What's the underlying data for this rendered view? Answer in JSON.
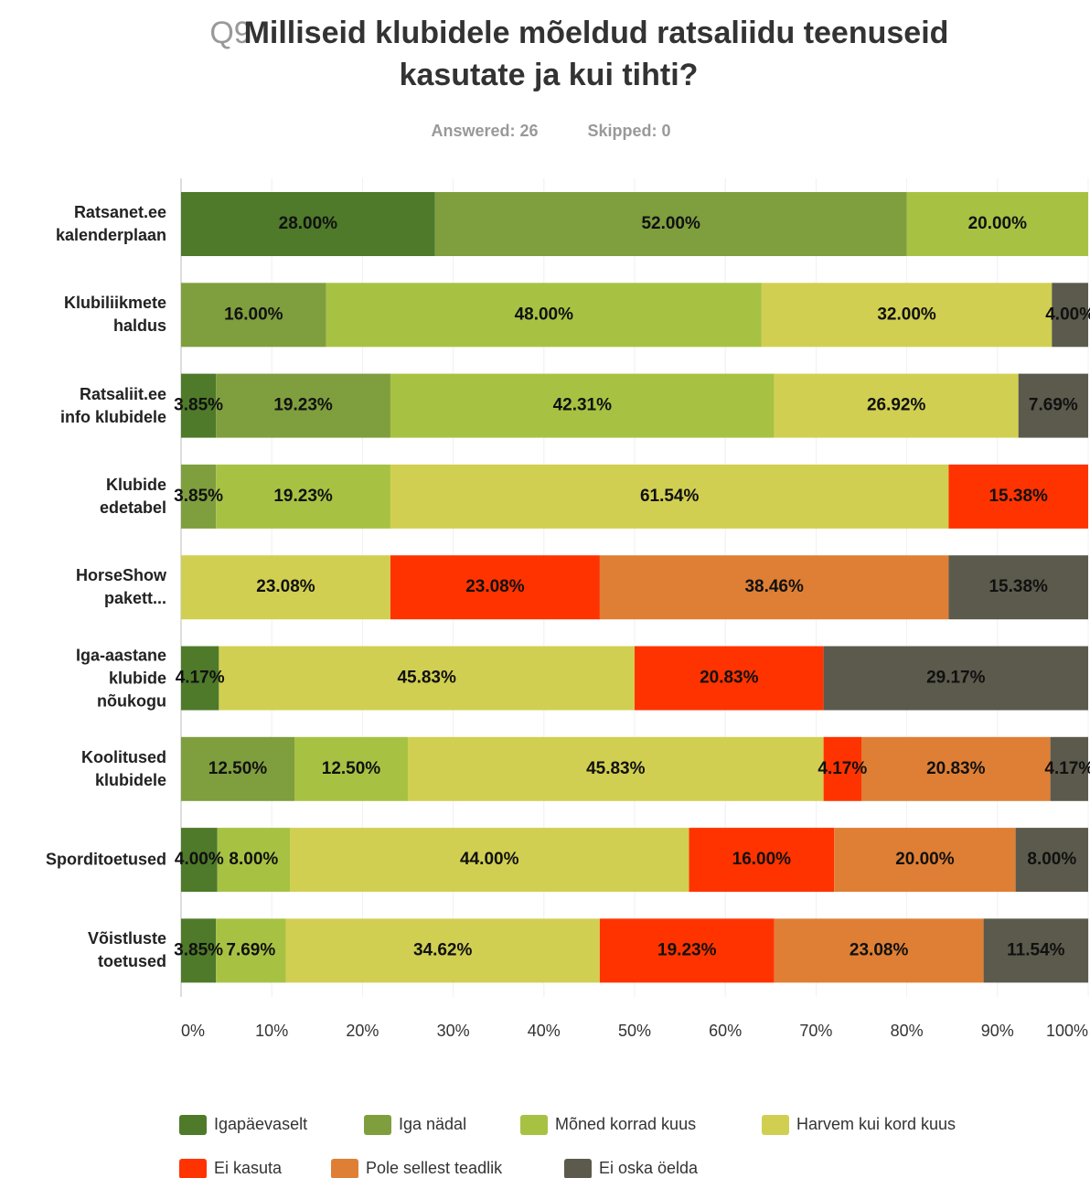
{
  "chart_data": {
    "type": "stacked_bar_horizontal",
    "question_number": "Q9",
    "title": "Milliseid klubidele mõeldud ratsaliidu teenuseid kasutate ja kui tihti?",
    "answered": "Answered: 26",
    "skipped": "Skipped: 0",
    "categories": [
      "Ratsanet.ee\nkalenderplaan",
      "Klubiliikmete\nhaldus",
      "Ratsaliit.ee\ninfo klubidele",
      "Klubide\nedetabel",
      "HorseShow\npakett...",
      "Iga-aastane\nklubide\nnõukogu",
      "Koolitused\nklubidele",
      "Sporditoetused",
      "Võistluste\ntoetused"
    ],
    "xlim": [
      0,
      100
    ],
    "xticks": [
      {
        "value": 0,
        "label": "0%"
      },
      {
        "value": 10,
        "label": "10%"
      },
      {
        "value": 20,
        "label": "20%"
      },
      {
        "value": 30,
        "label": "30%"
      },
      {
        "value": 40,
        "label": "40%"
      },
      {
        "value": 50,
        "label": "50%"
      },
      {
        "value": 60,
        "label": "60%"
      },
      {
        "value": 70,
        "label": "70%"
      },
      {
        "value": 80,
        "label": "80%"
      },
      {
        "value": 90,
        "label": "90%"
      },
      {
        "value": 100,
        "label": "100%"
      }
    ],
    "series": [
      {
        "name": "Igapäevaselt",
        "color": "#4e7a2a",
        "values": [
          28,
          null,
          3.85,
          null,
          null,
          4.17,
          null,
          4,
          3.85
        ],
        "value_labels": [
          "28.00%",
          null,
          "3.85%",
          null,
          null,
          "4.17%",
          null,
          "4.00%",
          "3.85%"
        ]
      },
      {
        "name": "Iga nädal",
        "color": "#7f9e3e",
        "values": [
          52,
          16,
          19.23,
          3.85,
          null,
          null,
          12.5,
          null,
          null
        ],
        "value_labels": [
          "52.00%",
          "16.00%",
          "19.23%",
          "3.85%",
          null,
          null,
          "12.50%",
          null,
          null
        ]
      },
      {
        "name": "Mõned korrad kuus",
        "color": "#a7c243",
        "values": [
          20,
          48,
          42.31,
          19.23,
          null,
          null,
          12.5,
          8,
          7.69
        ],
        "value_labels": [
          "20.00%",
          "48.00%",
          "42.31%",
          "19.23%",
          null,
          null,
          "12.50%",
          "8.00%",
          "7.69%"
        ]
      },
      {
        "name": "Harvem kui kord kuus",
        "color": "#d1cf52",
        "values": [
          null,
          32,
          26.92,
          61.54,
          23.08,
          45.83,
          45.83,
          44,
          34.62
        ],
        "value_labels": [
          null,
          "32.00%",
          "26.92%",
          "61.54%",
          "23.08%",
          "45.83%",
          "45.83%",
          "44.00%",
          "34.62%"
        ]
      },
      {
        "name": "Ei kasuta",
        "color": "#ff3300",
        "values": [
          null,
          null,
          null,
          15.38,
          23.08,
          20.83,
          4.17,
          16,
          19.23
        ],
        "value_labels": [
          null,
          null,
          null,
          "15.38%",
          "23.08%",
          "20.83%",
          "4.17%",
          "16.00%",
          "19.23%"
        ]
      },
      {
        "name": "Pole sellest teadlik",
        "color": "#de7f35",
        "values": [
          null,
          null,
          null,
          null,
          38.46,
          null,
          20.83,
          20,
          23.08
        ],
        "value_labels": [
          null,
          null,
          null,
          null,
          "38.46%",
          null,
          "20.83%",
          "20.00%",
          "23.08%"
        ]
      },
      {
        "name": "Ei oska öelda",
        "color": "#5c5a4c",
        "values": [
          null,
          4,
          7.69,
          null,
          15.38,
          29.17,
          4.17,
          8,
          11.54
        ],
        "value_labels": [
          null,
          "4.00%",
          "7.69%",
          null,
          "15.38%",
          "29.17%",
          "4.17%",
          "8.00%",
          "11.54%"
        ]
      }
    ]
  }
}
